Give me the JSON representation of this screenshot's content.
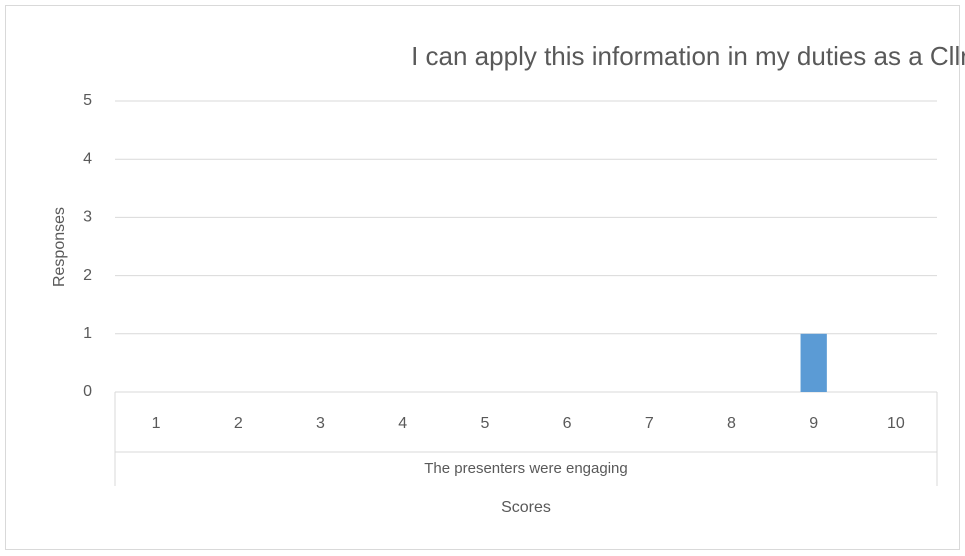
{
  "chart_data": {
    "type": "bar",
    "title": "I can apply this information in my duties as a Cllr",
    "categories": [
      "1",
      "2",
      "3",
      "4",
      "5",
      "6",
      "7",
      "8",
      "9",
      "10"
    ],
    "category_group": "The presenters were engaging",
    "values": [
      0,
      0,
      0,
      0,
      0,
      0,
      0,
      0,
      1,
      0
    ],
    "color": "#5b9bd5",
    "x_label": "Scores",
    "y_label": "Responses",
    "ylim": [
      0,
      5
    ],
    "yticks": [
      0,
      1,
      2,
      3,
      4,
      5
    ],
    "grid": true
  }
}
